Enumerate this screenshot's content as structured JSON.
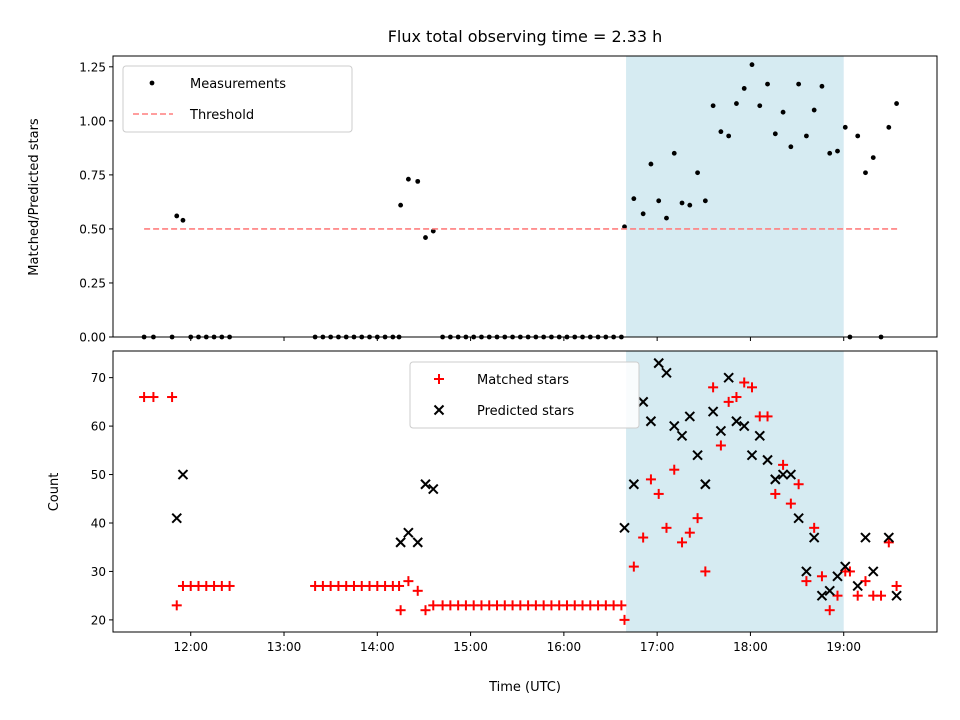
{
  "chart_data": [
    {
      "type": "scatter",
      "title": "Flux total observing time = 2.33 h",
      "xlabel": "",
      "ylabel": "Matched/Predicted stars",
      "xlim": [
        "11:10",
        "20:00"
      ],
      "ylim": [
        0,
        1.3
      ],
      "yticks": [
        "0.00",
        "0.25",
        "0.50",
        "0.75",
        "1.00",
        "1.25"
      ],
      "grid": false,
      "legend_position": "upper-left",
      "shaded_span": [
        "16:40",
        "19:00"
      ],
      "shaded_color": "#add8e6",
      "series": [
        {
          "name": "Measurements",
          "color": "#000000",
          "marker": "dot",
          "points": [
            [
              "11:30",
              0
            ],
            [
              "11:36",
              0
            ],
            [
              "11:48",
              0
            ],
            [
              "11:51",
              0.56
            ],
            [
              "11:55",
              0.54
            ],
            [
              "12:00",
              0
            ],
            [
              "12:05",
              0
            ],
            [
              "12:10",
              0
            ],
            [
              "12:15",
              0
            ],
            [
              "12:20",
              0
            ],
            [
              "12:25",
              0
            ],
            [
              "13:20",
              0
            ],
            [
              "13:25",
              0
            ],
            [
              "13:30",
              0
            ],
            [
              "13:35",
              0
            ],
            [
              "13:40",
              0
            ],
            [
              "13:45",
              0
            ],
            [
              "13:50",
              0
            ],
            [
              "13:55",
              0
            ],
            [
              "14:00",
              0
            ],
            [
              "14:05",
              0
            ],
            [
              "14:10",
              0
            ],
            [
              "14:14",
              0
            ],
            [
              "14:15",
              0.61
            ],
            [
              "14:20",
              0.73
            ],
            [
              "14:26",
              0.72
            ],
            [
              "14:31",
              0.46
            ],
            [
              "14:36",
              0.49
            ],
            [
              "14:42",
              0
            ],
            [
              "14:47",
              0
            ],
            [
              "14:52",
              0
            ],
            [
              "14:57",
              0
            ],
            [
              "15:02",
              0
            ],
            [
              "15:07",
              0
            ],
            [
              "15:12",
              0
            ],
            [
              "15:17",
              0
            ],
            [
              "15:22",
              0
            ],
            [
              "15:27",
              0
            ],
            [
              "15:32",
              0
            ],
            [
              "15:37",
              0
            ],
            [
              "15:42",
              0
            ],
            [
              "15:47",
              0
            ],
            [
              "15:52",
              0
            ],
            [
              "15:57",
              0
            ],
            [
              "16:02",
              0
            ],
            [
              "16:07",
              0
            ],
            [
              "16:12",
              0
            ],
            [
              "16:17",
              0
            ],
            [
              "16:22",
              0
            ],
            [
              "16:27",
              0
            ],
            [
              "16:32",
              0
            ],
            [
              "16:37",
              0
            ],
            [
              "16:39",
              0.51
            ],
            [
              "16:45",
              0.64
            ],
            [
              "16:51",
              0.57
            ],
            [
              "16:56",
              0.8
            ],
            [
              "17:01",
              0.63
            ],
            [
              "17:06",
              0.55
            ],
            [
              "17:11",
              0.85
            ],
            [
              "17:16",
              0.62
            ],
            [
              "17:21",
              0.61
            ],
            [
              "17:26",
              0.76
            ],
            [
              "17:31",
              0.63
            ],
            [
              "17:36",
              1.07
            ],
            [
              "17:41",
              0.95
            ],
            [
              "17:46",
              0.93
            ],
            [
              "17:51",
              1.08
            ],
            [
              "17:56",
              1.15
            ],
            [
              "18:01",
              1.26
            ],
            [
              "18:06",
              1.07
            ],
            [
              "18:11",
              1.17
            ],
            [
              "18:16",
              0.94
            ],
            [
              "18:21",
              1.04
            ],
            [
              "18:26",
              0.88
            ],
            [
              "18:31",
              1.17
            ],
            [
              "18:36",
              0.93
            ],
            [
              "18:41",
              1.05
            ],
            [
              "18:46",
              1.16
            ],
            [
              "18:51",
              0.85
            ],
            [
              "18:56",
              0.86
            ],
            [
              "19:01",
              0.97
            ],
            [
              "19:04",
              0
            ],
            [
              "19:09",
              0.93
            ],
            [
              "19:14",
              0.76
            ],
            [
              "19:19",
              0.83
            ],
            [
              "19:24",
              0
            ],
            [
              "19:29",
              0.97
            ],
            [
              "19:34",
              1.08
            ]
          ]
        },
        {
          "name": "Threshold",
          "color": "#ff7f7f",
          "style": "dashed",
          "points": [
            [
              "11:30",
              0.5
            ],
            [
              "19:35",
              0.5
            ]
          ]
        }
      ]
    },
    {
      "type": "scatter",
      "title": "",
      "xlabel": "Time (UTC)",
      "ylabel": "Count",
      "xlim": [
        "11:10",
        "20:00"
      ],
      "ylim": [
        17.5,
        75.5
      ],
      "yticks": [
        "20",
        "30",
        "40",
        "50",
        "60",
        "70"
      ],
      "xticks": [
        "12:00",
        "13:00",
        "14:00",
        "15:00",
        "16:00",
        "17:00",
        "18:00",
        "19:00"
      ],
      "grid": false,
      "legend_position": "upper-center",
      "shaded_span": [
        "16:40",
        "19:00"
      ],
      "shaded_color": "#add8e6",
      "series": [
        {
          "name": "Matched stars",
          "color": "#ff0000",
          "marker": "plus",
          "points": [
            [
              "11:30",
              66
            ],
            [
              "11:36",
              66
            ],
            [
              "11:48",
              66
            ],
            [
              "11:51",
              23
            ],
            [
              "11:55",
              27
            ],
            [
              "12:00",
              27
            ],
            [
              "12:05",
              27
            ],
            [
              "12:10",
              27
            ],
            [
              "12:15",
              27
            ],
            [
              "12:20",
              27
            ],
            [
              "12:25",
              27
            ],
            [
              "13:20",
              27
            ],
            [
              "13:25",
              27
            ],
            [
              "13:30",
              27
            ],
            [
              "13:35",
              27
            ],
            [
              "13:40",
              27
            ],
            [
              "13:45",
              27
            ],
            [
              "13:50",
              27
            ],
            [
              "13:55",
              27
            ],
            [
              "14:00",
              27
            ],
            [
              "14:05",
              27
            ],
            [
              "14:10",
              27
            ],
            [
              "14:14",
              27
            ],
            [
              "14:15",
              22
            ],
            [
              "14:20",
              28
            ],
            [
              "14:26",
              26
            ],
            [
              "14:31",
              22
            ],
            [
              "14:36",
              23
            ],
            [
              "14:42",
              23
            ],
            [
              "14:47",
              23
            ],
            [
              "14:52",
              23
            ],
            [
              "14:57",
              23
            ],
            [
              "15:02",
              23
            ],
            [
              "15:07",
              23
            ],
            [
              "15:12",
              23
            ],
            [
              "15:17",
              23
            ],
            [
              "15:22",
              23
            ],
            [
              "15:27",
              23
            ],
            [
              "15:32",
              23
            ],
            [
              "15:37",
              23
            ],
            [
              "15:42",
              23
            ],
            [
              "15:47",
              23
            ],
            [
              "15:52",
              23
            ],
            [
              "15:57",
              23
            ],
            [
              "16:02",
              23
            ],
            [
              "16:07",
              23
            ],
            [
              "16:12",
              23
            ],
            [
              "16:17",
              23
            ],
            [
              "16:22",
              23
            ],
            [
              "16:27",
              23
            ],
            [
              "16:32",
              23
            ],
            [
              "16:37",
              23
            ],
            [
              "16:39",
              20
            ],
            [
              "16:45",
              31
            ],
            [
              "16:51",
              37
            ],
            [
              "16:56",
              49
            ],
            [
              "17:01",
              46
            ],
            [
              "17:06",
              39
            ],
            [
              "17:11",
              51
            ],
            [
              "17:16",
              36
            ],
            [
              "17:21",
              38
            ],
            [
              "17:26",
              41
            ],
            [
              "17:31",
              30
            ],
            [
              "17:36",
              68
            ],
            [
              "17:41",
              56
            ],
            [
              "17:46",
              65
            ],
            [
              "17:51",
              66
            ],
            [
              "17:56",
              69
            ],
            [
              "18:01",
              68
            ],
            [
              "18:06",
              62
            ],
            [
              "18:11",
              62
            ],
            [
              "18:16",
              46
            ],
            [
              "18:21",
              52
            ],
            [
              "18:26",
              44
            ],
            [
              "18:31",
              48
            ],
            [
              "18:36",
              28
            ],
            [
              "18:41",
              39
            ],
            [
              "18:46",
              29
            ],
            [
              "18:51",
              22
            ],
            [
              "18:56",
              25
            ],
            [
              "19:01",
              30
            ],
            [
              "19:04",
              30
            ],
            [
              "19:09",
              25
            ],
            [
              "19:14",
              28
            ],
            [
              "19:19",
              25
            ],
            [
              "19:24",
              25
            ],
            [
              "19:29",
              36
            ],
            [
              "19:34",
              27
            ]
          ]
        },
        {
          "name": "Predicted stars",
          "color": "#000000",
          "marker": "x",
          "points": [
            [
              "11:51",
              41
            ],
            [
              "11:55",
              50
            ],
            [
              "14:15",
              36
            ],
            [
              "14:20",
              38
            ],
            [
              "14:26",
              36
            ],
            [
              "14:31",
              48
            ],
            [
              "14:36",
              47
            ],
            [
              "16:39",
              39
            ],
            [
              "16:45",
              48
            ],
            [
              "16:51",
              65
            ],
            [
              "16:56",
              61
            ],
            [
              "17:01",
              73
            ],
            [
              "17:06",
              71
            ],
            [
              "17:11",
              60
            ],
            [
              "17:16",
              58
            ],
            [
              "17:21",
              62
            ],
            [
              "17:26",
              54
            ],
            [
              "17:31",
              48
            ],
            [
              "17:36",
              63
            ],
            [
              "17:41",
              59
            ],
            [
              "17:46",
              70
            ],
            [
              "17:51",
              61
            ],
            [
              "17:56",
              60
            ],
            [
              "18:01",
              54
            ],
            [
              "18:06",
              58
            ],
            [
              "18:11",
              53
            ],
            [
              "18:16",
              49
            ],
            [
              "18:21",
              50
            ],
            [
              "18:26",
              50
            ],
            [
              "18:31",
              41
            ],
            [
              "18:36",
              30
            ],
            [
              "18:41",
              37
            ],
            [
              "18:46",
              25
            ],
            [
              "18:51",
              26
            ],
            [
              "18:56",
              29
            ],
            [
              "19:01",
              31
            ],
            [
              "19:09",
              27
            ],
            [
              "19:14",
              37
            ],
            [
              "19:19",
              30
            ],
            [
              "19:29",
              37
            ],
            [
              "19:34",
              25
            ]
          ]
        }
      ]
    }
  ]
}
